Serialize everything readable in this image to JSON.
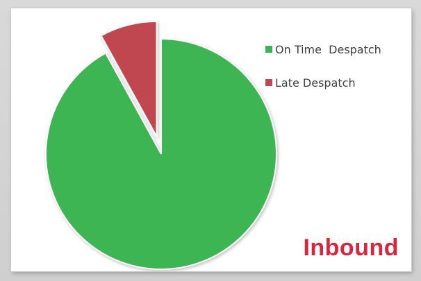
{
  "chart_data": {
    "type": "pie",
    "categories": [
      "On Time  Despatch",
      "Late Despatch"
    ],
    "values": [
      92,
      8
    ],
    "colors": [
      "#3db552",
      "#c0464f"
    ],
    "exploded": [
      false,
      true
    ],
    "start_angle_deg": 0,
    "legend_position": "top-right",
    "annotation": "Inbound"
  },
  "legend": {
    "items": [
      {
        "label": "On Time  Despatch",
        "color": "#3db552"
      },
      {
        "label": "Late Despatch",
        "color": "#c0464f"
      }
    ]
  },
  "label": {
    "inbound": "Inbound"
  }
}
